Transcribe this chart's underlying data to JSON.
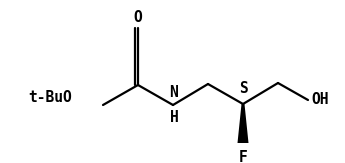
{
  "bg_color": "#ffffff",
  "line_color": "#000000",
  "bond_width": 1.6,
  "text_color": "#000000",
  "label_tBuO": "t-BuO",
  "label_O": "O",
  "label_N": "N",
  "label_H": "H",
  "label_S": "S",
  "label_F": "F",
  "label_OH": "OH",
  "font_size": 10.5
}
